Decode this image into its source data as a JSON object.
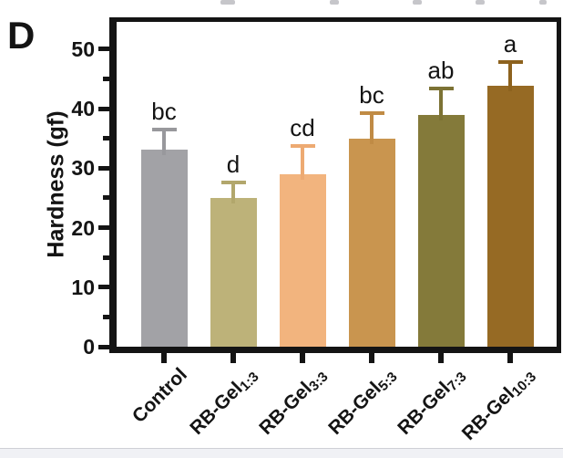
{
  "panel_label": "D",
  "chart_data": {
    "type": "bar",
    "title": "",
    "xlabel": "",
    "ylabel": "Hardness (gf)",
    "ylim": [
      0,
      54.6
    ],
    "yticks": [
      0,
      10,
      20,
      30,
      40,
      50
    ],
    "yticks_minor": [
      5,
      15,
      25,
      35,
      45
    ],
    "grid": false,
    "legend": null,
    "categories": [
      {
        "prefix": "Control",
        "subscript": ""
      },
      {
        "prefix": "RB-Gel",
        "subscript": "1:3"
      },
      {
        "prefix": "RB-Gel",
        "subscript": "3:3"
      },
      {
        "prefix": "RB-Gel",
        "subscript": "5:3"
      },
      {
        "prefix": "RB-Gel",
        "subscript": "7:3"
      },
      {
        "prefix": "RB-Gel",
        "subscript": "10:3"
      }
    ],
    "values": [
      33.2,
      25.0,
      29.0,
      35.0,
      39.0,
      43.8
    ],
    "errors_plus": [
      3.3,
      2.6,
      4.8,
      4.2,
      4.4,
      4.0
    ],
    "sig_letters": [
      "bc",
      "d",
      "cd",
      "bc",
      "ab",
      "a"
    ],
    "bar_colors": [
      "#a2a2a6",
      "#bdb279",
      "#f2b47e",
      "#c9954f",
      "#847a3a",
      "#966a24"
    ],
    "error_bar_colors": [
      "#98989c",
      "#b2a76c",
      "#edaa72",
      "#c08b45",
      "#7c7234",
      "#8d621e"
    ]
  }
}
